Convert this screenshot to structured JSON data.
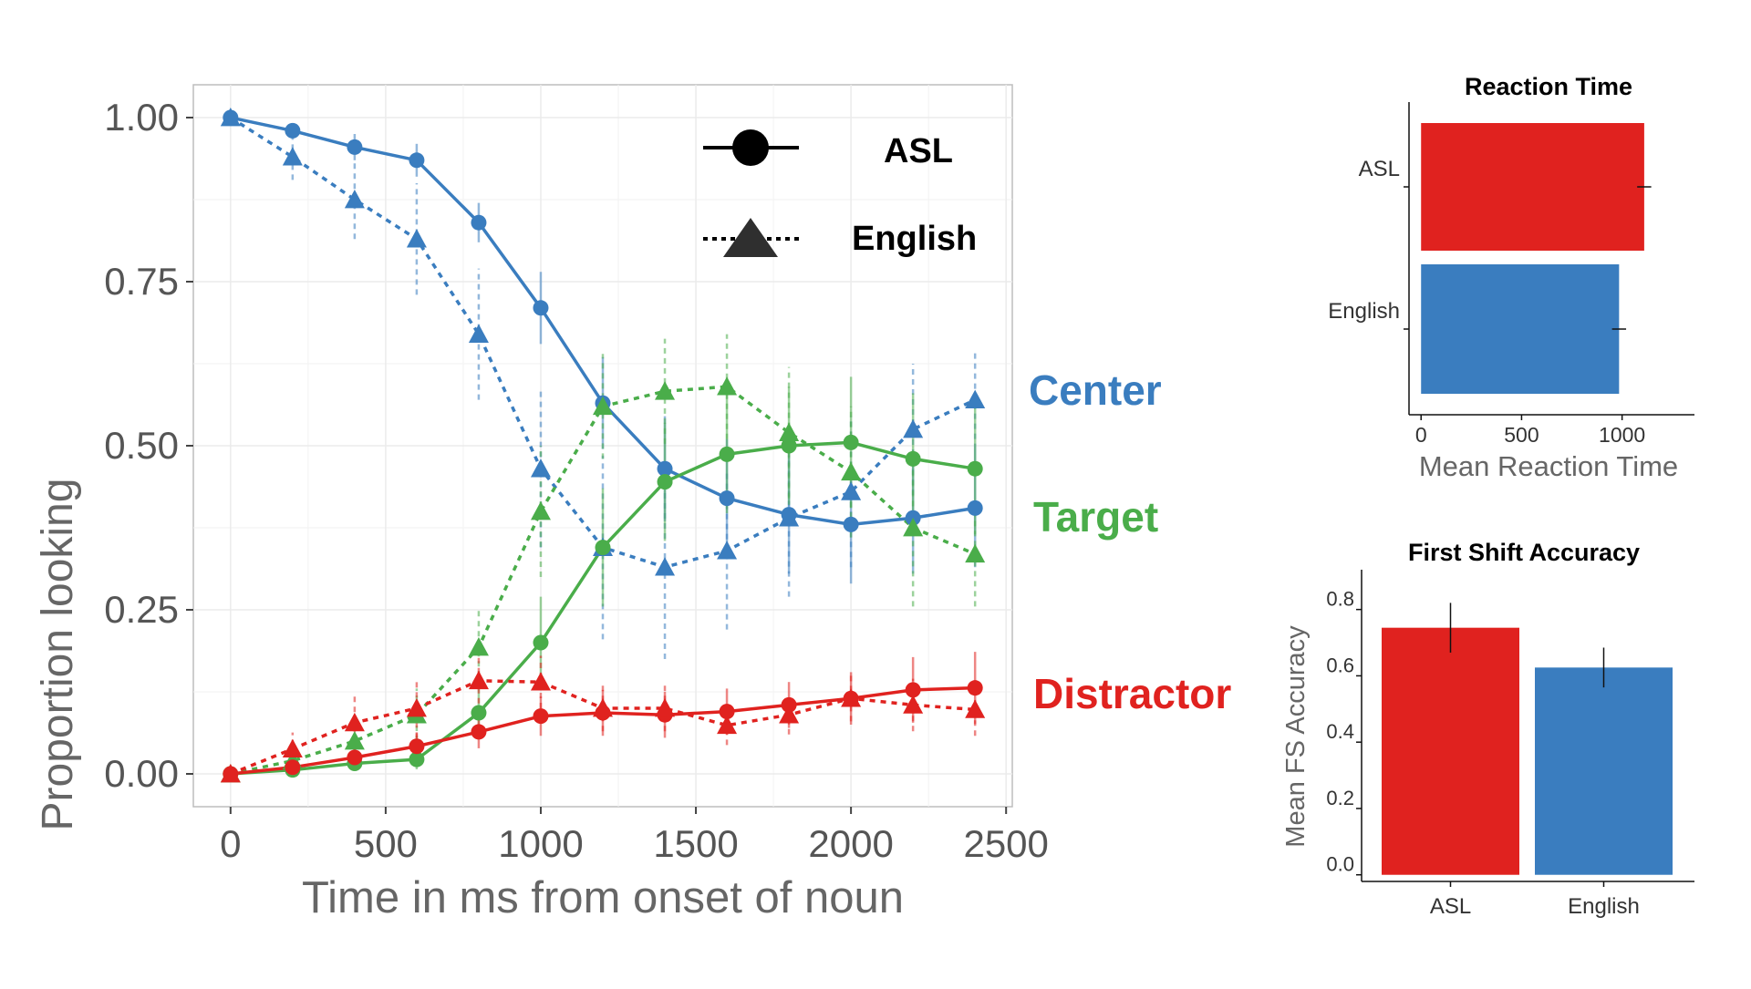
{
  "colors": {
    "center": "#3a7dbf",
    "target": "#4aad4a",
    "distractor": "#e0221f",
    "rt_asl": "#e0221f",
    "rt_english": "#3a7dbf",
    "axis_text": "#666666"
  },
  "chart_data": [
    {
      "type": "line",
      "xlabel": "Time in ms from onset of noun",
      "ylabel": "Proportion looking",
      "xlim": [
        -120,
        2520
      ],
      "ylim": [
        -0.05,
        1.05
      ],
      "x_ticks": [
        0,
        500,
        1000,
        1500,
        2000,
        2500
      ],
      "x_tick_labels": [
        "0",
        "500",
        "1000",
        "1500",
        "2000",
        "2500"
      ],
      "y_ticks": [
        0,
        0.25,
        0.5,
        0.75,
        1.0
      ],
      "y_tick_labels": [
        "0.00",
        "0.25",
        "0.50",
        "0.75",
        "1.00"
      ],
      "grid": true,
      "legend": [
        {
          "label": "ASL",
          "marker": "circle",
          "line": "solid"
        },
        {
          "label": "English",
          "marker": "triangle",
          "line": "dotted"
        }
      ],
      "annotations": [
        {
          "text": "Center",
          "color": "#3a7dbf"
        },
        {
          "text": "Target",
          "color": "#4aad4a"
        },
        {
          "text": "Distractor",
          "color": "#e0221f"
        }
      ],
      "x": [
        0,
        200,
        400,
        600,
        800,
        1000,
        1200,
        1400,
        1600,
        1800,
        2000,
        2200,
        2400
      ],
      "series": [
        {
          "aoi": "Center",
          "group": "ASL",
          "color": "#3a7dbf",
          "values": [
            1.0,
            0.98,
            0.955,
            0.935,
            0.84,
            0.71,
            0.565,
            0.465,
            0.42,
            0.395,
            0.38,
            0.39,
            0.405
          ],
          "errors": [
            0.0,
            0.01,
            0.02,
            0.025,
            0.03,
            0.055,
            0.07,
            0.08,
            0.09,
            0.09,
            0.09,
            0.085,
            0.09
          ]
        },
        {
          "aoi": "Center",
          "group": "English",
          "color": "#3a7dbf",
          "values": [
            1.0,
            0.94,
            0.875,
            0.815,
            0.67,
            0.465,
            0.345,
            0.315,
            0.34,
            0.39,
            0.43,
            0.525,
            0.57
          ],
          "errors": [
            0.0,
            0.035,
            0.06,
            0.085,
            0.1,
            0.12,
            0.14,
            0.14,
            0.12,
            0.12,
            0.115,
            0.1,
            0.075
          ]
        },
        {
          "aoi": "Target",
          "group": "ASL",
          "color": "#4aad4a",
          "values": [
            0.0,
            0.006,
            0.016,
            0.022,
            0.093,
            0.2,
            0.345,
            0.445,
            0.487,
            0.5,
            0.505,
            0.48,
            0.465
          ],
          "errors": [
            0.0,
            0.005,
            0.01,
            0.015,
            0.04,
            0.07,
            0.09,
            0.09,
            0.09,
            0.09,
            0.1,
            0.1,
            0.1
          ]
        },
        {
          "aoi": "Target",
          "group": "English",
          "color": "#4aad4a",
          "values": [
            0.0,
            0.02,
            0.05,
            0.09,
            0.193,
            0.4,
            0.56,
            0.583,
            0.59,
            0.52,
            0.46,
            0.375,
            0.335
          ],
          "errors": [
            0.0,
            0.02,
            0.03,
            0.04,
            0.06,
            0.1,
            0.08,
            0.08,
            0.08,
            0.1,
            0.1,
            0.12,
            0.08
          ]
        },
        {
          "aoi": "Distractor",
          "group": "ASL",
          "color": "#e0221f",
          "values": [
            0.0,
            0.01,
            0.025,
            0.042,
            0.064,
            0.088,
            0.093,
            0.09,
            0.095,
            0.105,
            0.115,
            0.128,
            0.131
          ],
          "errors": [
            0.0,
            0.01,
            0.015,
            0.02,
            0.025,
            0.03,
            0.035,
            0.035,
            0.035,
            0.035,
            0.04,
            0.05,
            0.055
          ]
        },
        {
          "aoi": "Distractor",
          "group": "English",
          "color": "#e0221f",
          "values": [
            0.0,
            0.038,
            0.078,
            0.1,
            0.142,
            0.14,
            0.1,
            0.1,
            0.074,
            0.09,
            0.115,
            0.105,
            0.098
          ],
          "errors": [
            0.0,
            0.025,
            0.045,
            0.045,
            0.05,
            0.04,
            0.035,
            0.035,
            0.03,
            0.03,
            0.035,
            0.04,
            0.04
          ]
        }
      ]
    },
    {
      "type": "bar",
      "orientation": "horizontal",
      "title": "Reaction Time",
      "xlabel": "Mean Reaction Time",
      "ylabel": "",
      "categories": [
        "ASL",
        "English"
      ],
      "values": [
        1110,
        985
      ],
      "errors": [
        35,
        35
      ],
      "colors": [
        "#e0221f",
        "#3a7dbf"
      ],
      "xlim": [
        -60,
        1360
      ],
      "x_ticks": [
        0,
        500,
        1000
      ],
      "x_tick_labels": [
        "0",
        "500",
        "1000"
      ],
      "grid": false
    },
    {
      "type": "bar",
      "title": "First Shift Accuracy",
      "xlabel": "",
      "ylabel": "Mean FS Accuracy",
      "categories": [
        "ASL",
        "English"
      ],
      "values": [
        0.745,
        0.625
      ],
      "errors": [
        0.075,
        0.06
      ],
      "colors": [
        "#e0221f",
        "#3a7dbf"
      ],
      "ylim": [
        -0.02,
        0.92
      ],
      "y_ticks": [
        0.0,
        0.2,
        0.4,
        0.6,
        0.8
      ],
      "y_tick_labels": [
        "0.0",
        "0.2",
        "0.4",
        "0.6",
        "0.8"
      ],
      "grid": false
    }
  ]
}
